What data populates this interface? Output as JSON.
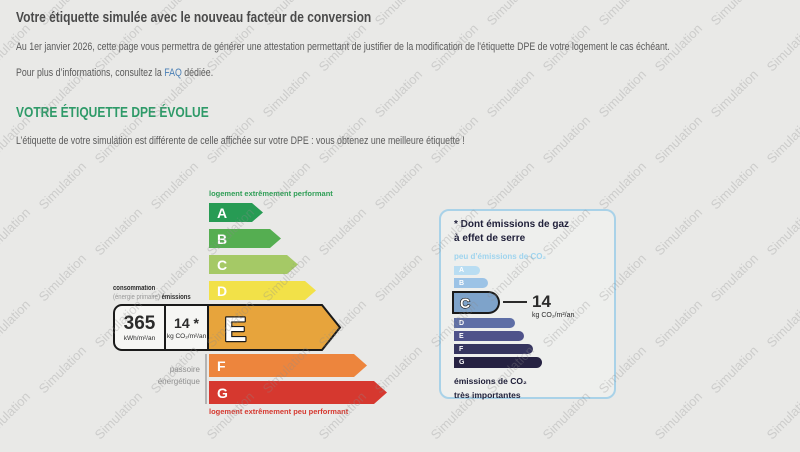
{
  "page": {
    "background": "#e9e9e7",
    "watermark_text": "Simulation",
    "title": "Votre étiquette simulée avec le nouveau facteur de conversion",
    "intro": "Au 1er janvier 2026, cette page vous permettra de générer une attestation permettant de justifier de la modification de l'étiquette DPE de votre logement le cas échéant.",
    "faq": {
      "prefix": "Pour plus d’informations, consultez la ",
      "link_label": "FAQ",
      "suffix": " dédiée.",
      "link_color": "#4a7fb5"
    }
  },
  "evolution": {
    "heading": "VOTRE ÉTIQUETTE DPE ÉVOLUE",
    "heading_color": "#2e9a68",
    "text": "L’étiquette de votre simulation est différente de celle affichée sur votre DPE : vous obtenez une meilleure étiquette !"
  },
  "dpe": {
    "top_label": "logement extrêmement performant",
    "top_label_color": "#2f9e56",
    "bottom_label": "logement extrêmement peu performant",
    "bottom_label_color": "#d6382f",
    "consumption_label": "consommation",
    "consumption_sublabel": "(énergie primaire)",
    "emissions_label": "émissions",
    "passoire_label_line1": "passoire",
    "passoire_label_line2": "énergétique",
    "energy_value": "365",
    "energy_unit": "kWh/m²/an",
    "co2_value": "14 *",
    "co2_unit": "kg CO₂/m²/an",
    "selected_class": "E",
    "classes": [
      {
        "letter": "A",
        "color": "#279b54"
      },
      {
        "letter": "B",
        "color": "#55ae51"
      },
      {
        "letter": "C",
        "color": "#a5c966"
      },
      {
        "letter": "D",
        "color": "#f2e148"
      },
      {
        "letter": "E",
        "color": "#e7a43c"
      },
      {
        "letter": "F",
        "color": "#ed853d"
      },
      {
        "letter": "G",
        "color": "#d6382f"
      }
    ]
  },
  "ges": {
    "title_line1": "* Dont émissions de gaz",
    "title_line2": "à effet de serre",
    "low_label": "peu d’émissions de CO₂",
    "low_label_color": "#9fd4ee",
    "high_label_line1": "émissions de CO₂",
    "high_label_line2": "très importantes",
    "value": "14",
    "unit": "kg CO₂/m²/an",
    "selected_class": "C",
    "border_color": "#a9d2e8",
    "classes": [
      {
        "letter": "A",
        "color": "#b9ddf2"
      },
      {
        "letter": "B",
        "color": "#9cc3e6"
      },
      {
        "letter": "C",
        "color": "#7ea3ca"
      },
      {
        "letter": "D",
        "color": "#5e6ea6"
      },
      {
        "letter": "E",
        "color": "#4f528a"
      },
      {
        "letter": "F",
        "color": "#36355f"
      },
      {
        "letter": "G",
        "color": "#262242"
      }
    ]
  }
}
